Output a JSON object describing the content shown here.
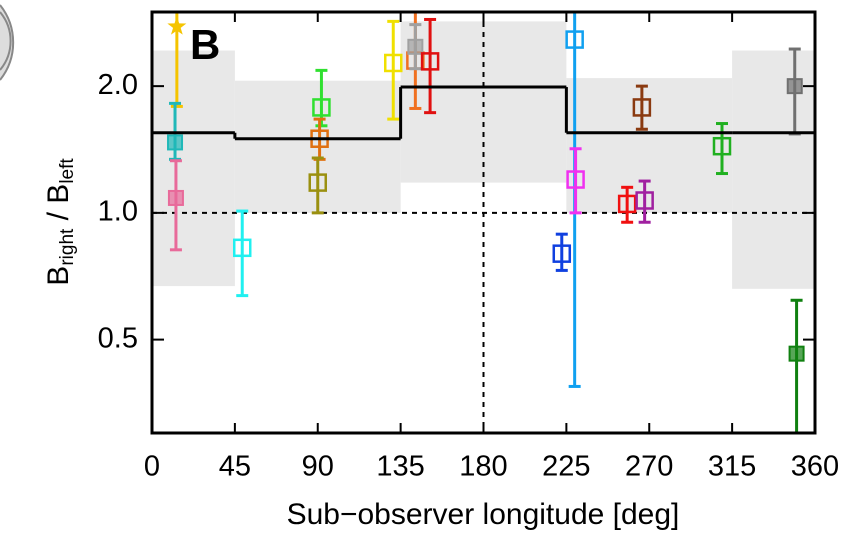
{
  "chart_data": {
    "type": "errorbar-scatter",
    "panel_label": "B",
    "xlabel": "Sub−observer longitude [deg]",
    "ylabel": {
      "main1": "B",
      "sub1": "right",
      "sep": " / ",
      "main2": "B",
      "sub2": "left"
    },
    "xlim": [
      0,
      360
    ],
    "ylim": [
      0.3,
      3.0
    ],
    "log_y": true,
    "xticks": [
      0,
      45,
      90,
      135,
      180,
      225,
      270,
      315,
      360
    ],
    "yticks": [
      0.5,
      {
        "value": 1,
        "label": "1.0"
      },
      {
        "value": 2,
        "label": "2.0"
      }
    ],
    "reference_lines": {
      "x": 180,
      "y": 1
    },
    "model": {
      "color": "#000000",
      "band_color": "#e8e8e8",
      "edges": [
        0,
        45,
        135,
        225,
        315,
        360
      ],
      "values": [
        1.55,
        1.5,
        1.99,
        1.55,
        1.55
      ],
      "band_low": [
        0.67,
        1.0,
        1.18,
        1.0,
        0.66
      ],
      "band_high": [
        2.43,
        2.06,
        2.85,
        2.09,
        2.43
      ]
    },
    "points": [
      {
        "x": 13.5,
        "y": 2.77,
        "lo": 1.79,
        "hi": 3.0,
        "color": "#f5c400",
        "marker": "star"
      },
      {
        "x": 12.5,
        "y": 1.47,
        "lo": 1.34,
        "hi": 1.82,
        "color": "#20b8b8",
        "marker": "filled"
      },
      {
        "x": 13,
        "y": 1.085,
        "lo": 0.817,
        "hi": 1.33,
        "color": "#e86a9a",
        "marker": "filled"
      },
      {
        "x": 49,
        "y": 0.826,
        "lo": 0.636,
        "hi": 1.01,
        "color": "#20f0f0",
        "marker": "square"
      },
      {
        "x": 92,
        "y": 1.78,
        "lo": 1.61,
        "hi": 2.18,
        "color": "#30e030",
        "marker": "square"
      },
      {
        "x": 91,
        "y": 1.5,
        "lo": 1.34,
        "hi": 1.67,
        "color": "#e07010",
        "marker": "square"
      },
      {
        "x": 90,
        "y": 1.18,
        "lo": 1.0,
        "hi": 1.35,
        "color": "#9a9010",
        "marker": "square"
      },
      {
        "x": 131,
        "y": 2.27,
        "lo": 1.67,
        "hi": 2.85,
        "color": "#f0e000",
        "marker": "square"
      },
      {
        "x": 143,
        "y": 2.3,
        "lo": 1.77,
        "hi": 3.0,
        "color": "#f07020",
        "marker": "square"
      },
      {
        "x": 143,
        "y": 2.48,
        "lo": 2.2,
        "hi": 2.8,
        "color": "#a0a0a0",
        "marker": "filled"
      },
      {
        "x": 151,
        "y": 2.29,
        "lo": 1.73,
        "hi": 2.88,
        "color": "#e01010",
        "marker": "square"
      },
      {
        "x": 229.5,
        "y": 2.58,
        "lo": 0.387,
        "hi": 3.0,
        "color": "#10a0f0",
        "marker": "square"
      },
      {
        "x": 222.5,
        "y": 0.8,
        "lo": 0.73,
        "hi": 0.89,
        "color": "#1040e0",
        "marker": "square"
      },
      {
        "x": 230,
        "y": 1.2,
        "lo": 1.0,
        "hi": 1.42,
        "color": "#f030f0",
        "marker": "square"
      },
      {
        "x": 258,
        "y": 1.05,
        "lo": 0.95,
        "hi": 1.15,
        "color": "#f01010",
        "marker": "square"
      },
      {
        "x": 267.5,
        "y": 1.07,
        "lo": 0.95,
        "hi": 1.19,
        "color": "#a020a0",
        "marker": "square"
      },
      {
        "x": 266,
        "y": 1.78,
        "lo": 1.58,
        "hi": 2.0,
        "color": "#8a3a10",
        "marker": "square"
      },
      {
        "x": 309.5,
        "y": 1.44,
        "lo": 1.24,
        "hi": 1.63,
        "color": "#20b020",
        "marker": "square"
      },
      {
        "x": 349,
        "y": 2.0,
        "lo": 1.54,
        "hi": 2.45,
        "color": "#707070",
        "marker": "filled"
      },
      {
        "x": 350,
        "y": 0.463,
        "lo": 0.3,
        "hi": 0.62,
        "color": "#108010",
        "marker": "filled"
      }
    ]
  }
}
